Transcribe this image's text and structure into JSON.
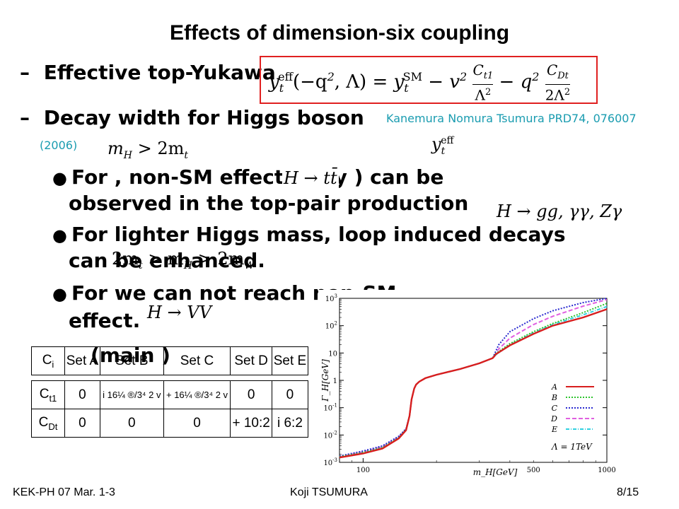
{
  "slide": {
    "title": "Effects of dimension-six coupling",
    "items": [
      {
        "dash": "–",
        "text": "Effective top-Yukawa"
      },
      {
        "dash": "–",
        "text": "Decay width for Higgs boson",
        "ref": "Kanemura Nomura Tsumura PRD74, 076007",
        "ref_year": "(2006)"
      }
    ],
    "equation": {
      "lhs_y": "y",
      "lhs_sub": "t",
      "lhs_sup": "eff",
      "arg": "(−q",
      "arg2": "2",
      "arg3": ", Λ) =",
      "rhs_y": "y",
      "rhs_sub": "t",
      "rhs_sup": "SM",
      "m1": "− v",
      "m1sup": "2",
      "frac1_num": "C",
      "frac1_num_sub": "t1",
      "frac1_den": "Λ",
      "frac1_den_sup": "2",
      "m2": "− q",
      "m2sup": "2",
      "frac2_num": "C",
      "frac2_num_sub": "Dt",
      "frac2_den": "2Λ",
      "frac2_den_sup": "2"
    },
    "bullets": [
      {
        "l1": "For               , non-SM effect (only        ) can be",
        "l2": "observed in the top-pair production"
      },
      {
        "l1": "For lighter Higgs mass, loop induced decays",
        "l2": "can be enhanced."
      },
      {
        "l1": "For                              we can not reach non-SM",
        "l2": "effect."
      }
    ],
    "main_label": "(main          )",
    "math_labels": {
      "mh2mt": "m",
      "mh2mt_sub": "H",
      "mh2mt_rest": " > 2m",
      "mh2mt_sub2": "t",
      "yteff": "y",
      "yteff_sub": "t",
      "yteff_sup": "eff",
      "htt": "H → tt̄",
      "hgg": "H → gg, γγ, Zγ",
      "range": "2m",
      "range_sub": "t",
      "range_mid": " > m",
      "range_sub2": "H",
      "range_rest": " > 2m",
      "range_sub3": "W",
      "hvv": "H → VV"
    }
  },
  "table": {
    "headers": [
      "C",
      "Set  A",
      "Set  B",
      "Set  C",
      "Set  D",
      "Set  E"
    ],
    "header_sub": "i",
    "rows": [
      {
        "label": "C",
        "label_sub": "t1",
        "cells": [
          "0",
          "i  16¼ ®/3⁴ 2  v",
          "+  16¼ ®/3⁴ 2  v",
          "0",
          "0"
        ]
      },
      {
        "label": "C",
        "label_sub": "Dt",
        "cells": [
          "0",
          "0",
          "0",
          "+ 10:2",
          "i  6:2"
        ]
      }
    ]
  },
  "chart_data": {
    "type": "line",
    "title": "",
    "xlabel": "m_H[GeV]",
    "ylabel": "Γ_H[GeV]",
    "xscale": "log",
    "yscale": "log",
    "xlim": [
      80,
      1000
    ],
    "ylim": [
      0.001,
      1000
    ],
    "xtick_labels": [
      "100",
      "500",
      "1000"
    ],
    "ytick_labels": [
      "10^-3",
      "10^-2",
      "10^-1",
      "1",
      "10",
      "10^2",
      "10^3"
    ],
    "legend_position": "bottom-right",
    "annotation": "Λ = 1TeV",
    "series": [
      {
        "name": "A",
        "color": "#d81e1e",
        "style": "solid",
        "x": [
          80,
          100,
          120,
          140,
          150,
          155,
          158,
          162,
          165,
          170,
          180,
          200,
          250,
          300,
          340,
          345,
          350,
          400,
          500,
          600,
          800,
          1000
        ],
        "y": [
          0.0015,
          0.0021,
          0.0032,
          0.0075,
          0.015,
          0.05,
          0.2,
          0.5,
          0.7,
          0.9,
          1.2,
          1.6,
          2.6,
          4.2,
          6.5,
          7.5,
          9,
          19,
          50,
          100,
          200,
          400
        ]
      },
      {
        "name": "B",
        "color": "#2ec42e",
        "style": "dotted",
        "x": [
          80,
          100,
          120,
          140,
          150,
          155,
          158,
          162,
          165,
          170,
          180,
          200,
          250,
          300,
          340,
          350,
          400,
          500,
          600,
          800,
          1000
        ],
        "y": [
          0.0016,
          0.0023,
          0.0035,
          0.008,
          0.016,
          0.05,
          0.2,
          0.5,
          0.7,
          0.9,
          1.2,
          1.6,
          2.6,
          4.2,
          6.5,
          9.5,
          22,
          60,
          120,
          300,
          650
        ]
      },
      {
        "name": "C",
        "color": "#2a2ad0",
        "style": "dotted",
        "x": [
          80,
          100,
          120,
          140,
          150,
          155,
          158,
          162,
          165,
          170,
          180,
          200,
          250,
          300,
          340,
          360,
          400,
          500,
          600,
          800,
          1000
        ],
        "y": [
          0.0017,
          0.0026,
          0.004,
          0.009,
          0.017,
          0.05,
          0.2,
          0.5,
          0.7,
          0.9,
          1.2,
          1.6,
          2.6,
          4.2,
          6.5,
          20,
          60,
          180,
          350,
          700,
          1000
        ]
      },
      {
        "name": "D",
        "color": "#e060e0",
        "style": "dashed",
        "x": [
          80,
          100,
          120,
          140,
          150,
          155,
          158,
          162,
          165,
          170,
          180,
          200,
          250,
          300,
          340,
          360,
          400,
          500,
          600,
          800,
          1000
        ],
        "y": [
          0.0016,
          0.0024,
          0.0037,
          0.0085,
          0.016,
          0.05,
          0.2,
          0.5,
          0.7,
          0.9,
          1.2,
          1.6,
          2.6,
          4.2,
          6.5,
          14,
          35,
          110,
          220,
          520,
          900
        ]
      },
      {
        "name": "E",
        "color": "#30d0e0",
        "style": "dashdot",
        "x": [
          80,
          100,
          120,
          140,
          150,
          155,
          158,
          162,
          165,
          170,
          180,
          200,
          250,
          300,
          340,
          350,
          400,
          500,
          600,
          800,
          1000
        ],
        "y": [
          0.0015,
          0.0022,
          0.0033,
          0.0078,
          0.015,
          0.05,
          0.2,
          0.5,
          0.7,
          0.9,
          1.2,
          1.6,
          2.6,
          4.2,
          6.5,
          8.5,
          20,
          55,
          110,
          250,
          500
        ]
      }
    ]
  },
  "footer": {
    "left": "KEK-PH 07 Mar. 1-3",
    "center": "Koji TSUMURA",
    "right": "8/15"
  }
}
